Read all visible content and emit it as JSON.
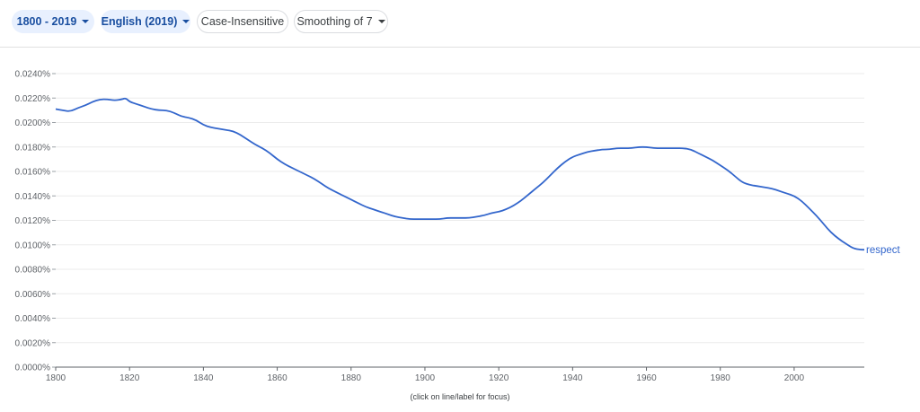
{
  "toolbar": {
    "year_range": "1800 - 2019",
    "corpus": "English (2019)",
    "case": "Case-Insensitive",
    "smoothing": "Smoothing of 7",
    "colors": {
      "chip_bg": "#e8f0fe",
      "chip_text": "#1a4fa0"
    }
  },
  "hint": "(click on line/label for focus)",
  "chart_data": {
    "type": "line",
    "title": "",
    "xlabel": "",
    "ylabel": "",
    "xlim": [
      1800,
      2019
    ],
    "ylim": [
      0,
      0.024
    ],
    "x_ticks": [
      1800,
      1820,
      1840,
      1860,
      1880,
      1900,
      1920,
      1940,
      1960,
      1980,
      2000
    ],
    "x_tick_labels": [
      "1800",
      "1820",
      "1840",
      "1860",
      "1880",
      "1900",
      "1920",
      "1940",
      "1960",
      "1980",
      "2000"
    ],
    "y_ticks": [
      0,
      0.002,
      0.004,
      0.006,
      0.008,
      0.01,
      0.012,
      0.014,
      0.016,
      0.018,
      0.02,
      0.022,
      0.024
    ],
    "y_tick_labels": [
      "0.0000%",
      "0.0020%",
      "0.0040%",
      "0.0060%",
      "0.0080%",
      "0.0100%",
      "0.0120%",
      "0.0140%",
      "0.0160%",
      "0.0180%",
      "0.0200%",
      "0.0220%",
      "0.0240%"
    ],
    "grid": true,
    "series": [
      {
        "name": "respect",
        "color": "#3366cc",
        "x": [
          1800,
          1802,
          1804,
          1806,
          1808,
          1810,
          1812,
          1814,
          1816,
          1818,
          1819,
          1820,
          1822,
          1824,
          1826,
          1828,
          1830,
          1832,
          1834,
          1836,
          1838,
          1840,
          1842,
          1844,
          1846,
          1848,
          1850,
          1852,
          1854,
          1856,
          1858,
          1860,
          1862,
          1864,
          1866,
          1868,
          1870,
          1872,
          1874,
          1876,
          1878,
          1880,
          1882,
          1884,
          1886,
          1888,
          1890,
          1892,
          1894,
          1896,
          1898,
          1900,
          1902,
          1904,
          1906,
          1908,
          1910,
          1912,
          1914,
          1916,
          1918,
          1920,
          1922,
          1924,
          1926,
          1928,
          1930,
          1932,
          1934,
          1936,
          1938,
          1940,
          1942,
          1944,
          1946,
          1948,
          1950,
          1952,
          1954,
          1956,
          1958,
          1960,
          1962,
          1964,
          1966,
          1968,
          1970,
          1972,
          1974,
          1976,
          1978,
          1980,
          1982,
          1984,
          1986,
          1988,
          1990,
          1992,
          1994,
          1996,
          1998,
          2000,
          2002,
          2004,
          2006,
          2008,
          2010,
          2012,
          2014,
          2016,
          2018,
          2019
        ],
        "y": [
          0.0211,
          0.021,
          0.0209,
          0.0212,
          0.0214,
          0.0217,
          0.0219,
          0.0219,
          0.0218,
          0.0219,
          0.022,
          0.0217,
          0.0215,
          0.0213,
          0.0211,
          0.021,
          0.021,
          0.0208,
          0.0205,
          0.0204,
          0.0202,
          0.0198,
          0.0196,
          0.0195,
          0.0194,
          0.0193,
          0.019,
          0.0186,
          0.0182,
          0.0179,
          0.0175,
          0.017,
          0.0166,
          0.0163,
          0.016,
          0.0157,
          0.0154,
          0.015,
          0.0146,
          0.0143,
          0.014,
          0.0137,
          0.0134,
          0.0131,
          0.0129,
          0.0127,
          0.0125,
          0.0123,
          0.0122,
          0.0121,
          0.0121,
          0.0121,
          0.0121,
          0.0121,
          0.0122,
          0.0122,
          0.0122,
          0.0122,
          0.0123,
          0.0124,
          0.0126,
          0.0127,
          0.0129,
          0.0132,
          0.0136,
          0.0141,
          0.0146,
          0.0151,
          0.0157,
          0.0163,
          0.0168,
          0.0172,
          0.0174,
          0.0176,
          0.0177,
          0.0178,
          0.0178,
          0.0179,
          0.0179,
          0.0179,
          0.018,
          0.018,
          0.0179,
          0.0179,
          0.0179,
          0.0179,
          0.0179,
          0.0178,
          0.0175,
          0.0172,
          0.0169,
          0.0165,
          0.0161,
          0.0156,
          0.0151,
          0.0149,
          0.0148,
          0.0147,
          0.0146,
          0.0144,
          0.0142,
          0.014,
          0.0136,
          0.013,
          0.0124,
          0.0117,
          0.011,
          0.0105,
          0.0101,
          0.0097,
          0.0096,
          0.0096
        ]
      }
    ]
  }
}
